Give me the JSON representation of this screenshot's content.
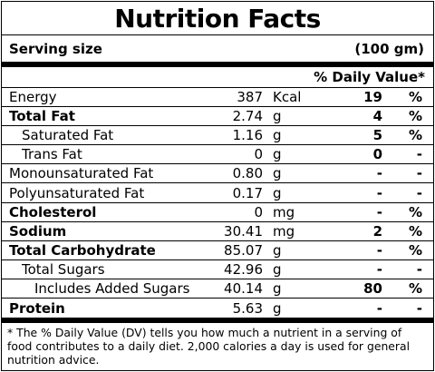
{
  "title": "Nutrition Facts",
  "serving": {
    "label": "Serving size",
    "amount": "(100 gm)"
  },
  "dv_header": "% Daily Value*",
  "rows": [
    {
      "name": "Energy",
      "amount": "387",
      "unit": "Kcal",
      "dv": "19",
      "pct": "%"
    },
    {
      "name": "Total Fat",
      "amount": "2.74",
      "unit": "g",
      "dv": "4",
      "pct": "%"
    },
    {
      "name": "Saturated Fat",
      "amount": "1.16",
      "unit": "g",
      "dv": "5",
      "pct": "%"
    },
    {
      "name": "Trans Fat",
      "amount": "0",
      "unit": "g",
      "dv": "0",
      "pct": "-"
    },
    {
      "name": "Monounsaturated Fat",
      "amount": "0.80",
      "unit": "g",
      "dv": "-",
      "pct": "-"
    },
    {
      "name": "Polyunsaturated Fat",
      "amount": "0.17",
      "unit": "g",
      "dv": "-",
      "pct": "-"
    },
    {
      "name": "Cholesterol",
      "amount": "0",
      "unit": "mg",
      "dv": "-",
      "pct": "%"
    },
    {
      "name": "Sodium",
      "amount": "30.41",
      "unit": "mg",
      "dv": "2",
      "pct": "%"
    },
    {
      "name": "Total Carbohydrate",
      "amount": "85.07",
      "unit": "g",
      "dv": "-",
      "pct": "%"
    },
    {
      "name": "Total Sugars",
      "amount": "42.96",
      "unit": "g",
      "dv": "-",
      "pct": "-"
    },
    {
      "name": "Includes Added Sugars",
      "amount": "40.14",
      "unit": "g",
      "dv": "80",
      "pct": "%"
    },
    {
      "name": "Protein",
      "amount": "5.63",
      "unit": "g",
      "dv": "-",
      "pct": "-"
    }
  ],
  "footnote": "* The % Daily Value (DV) tells you how much a nutrient in a serving of food contributes to a daily diet. 2,000 calories a day is used for general nutrition advice."
}
